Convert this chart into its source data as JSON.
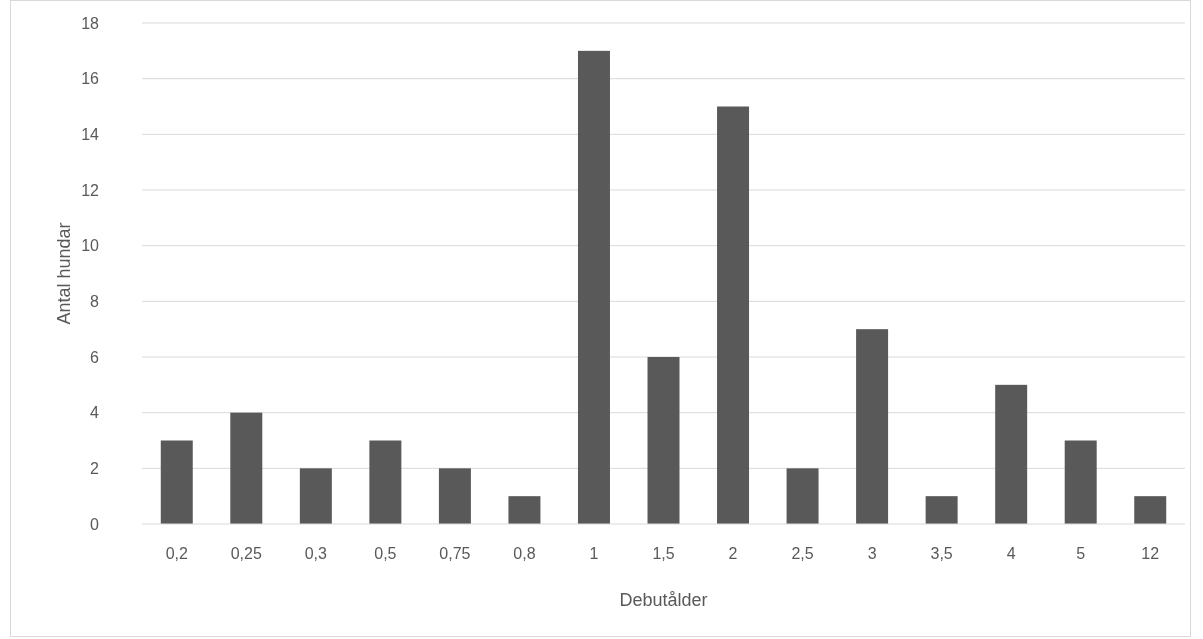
{
  "chart_data": {
    "type": "bar",
    "xlabel": "Debutålder",
    "ylabel": "Antal hundar",
    "categories": [
      "0,2",
      "0,25",
      "0,3",
      "0,5",
      "0,75",
      "0,8",
      "1",
      "1,5",
      "2",
      "2,5",
      "3",
      "3,5",
      "4",
      "5",
      "12"
    ],
    "values": [
      3,
      4,
      2,
      3,
      2,
      1,
      17,
      6,
      15,
      2,
      7,
      1,
      5,
      3,
      1
    ],
    "color": "#595959",
    "ylim": [
      0,
      18
    ],
    "yticks": [
      0,
      2,
      4,
      6,
      8,
      10,
      12,
      14,
      16,
      18
    ],
    "grid": "y"
  }
}
